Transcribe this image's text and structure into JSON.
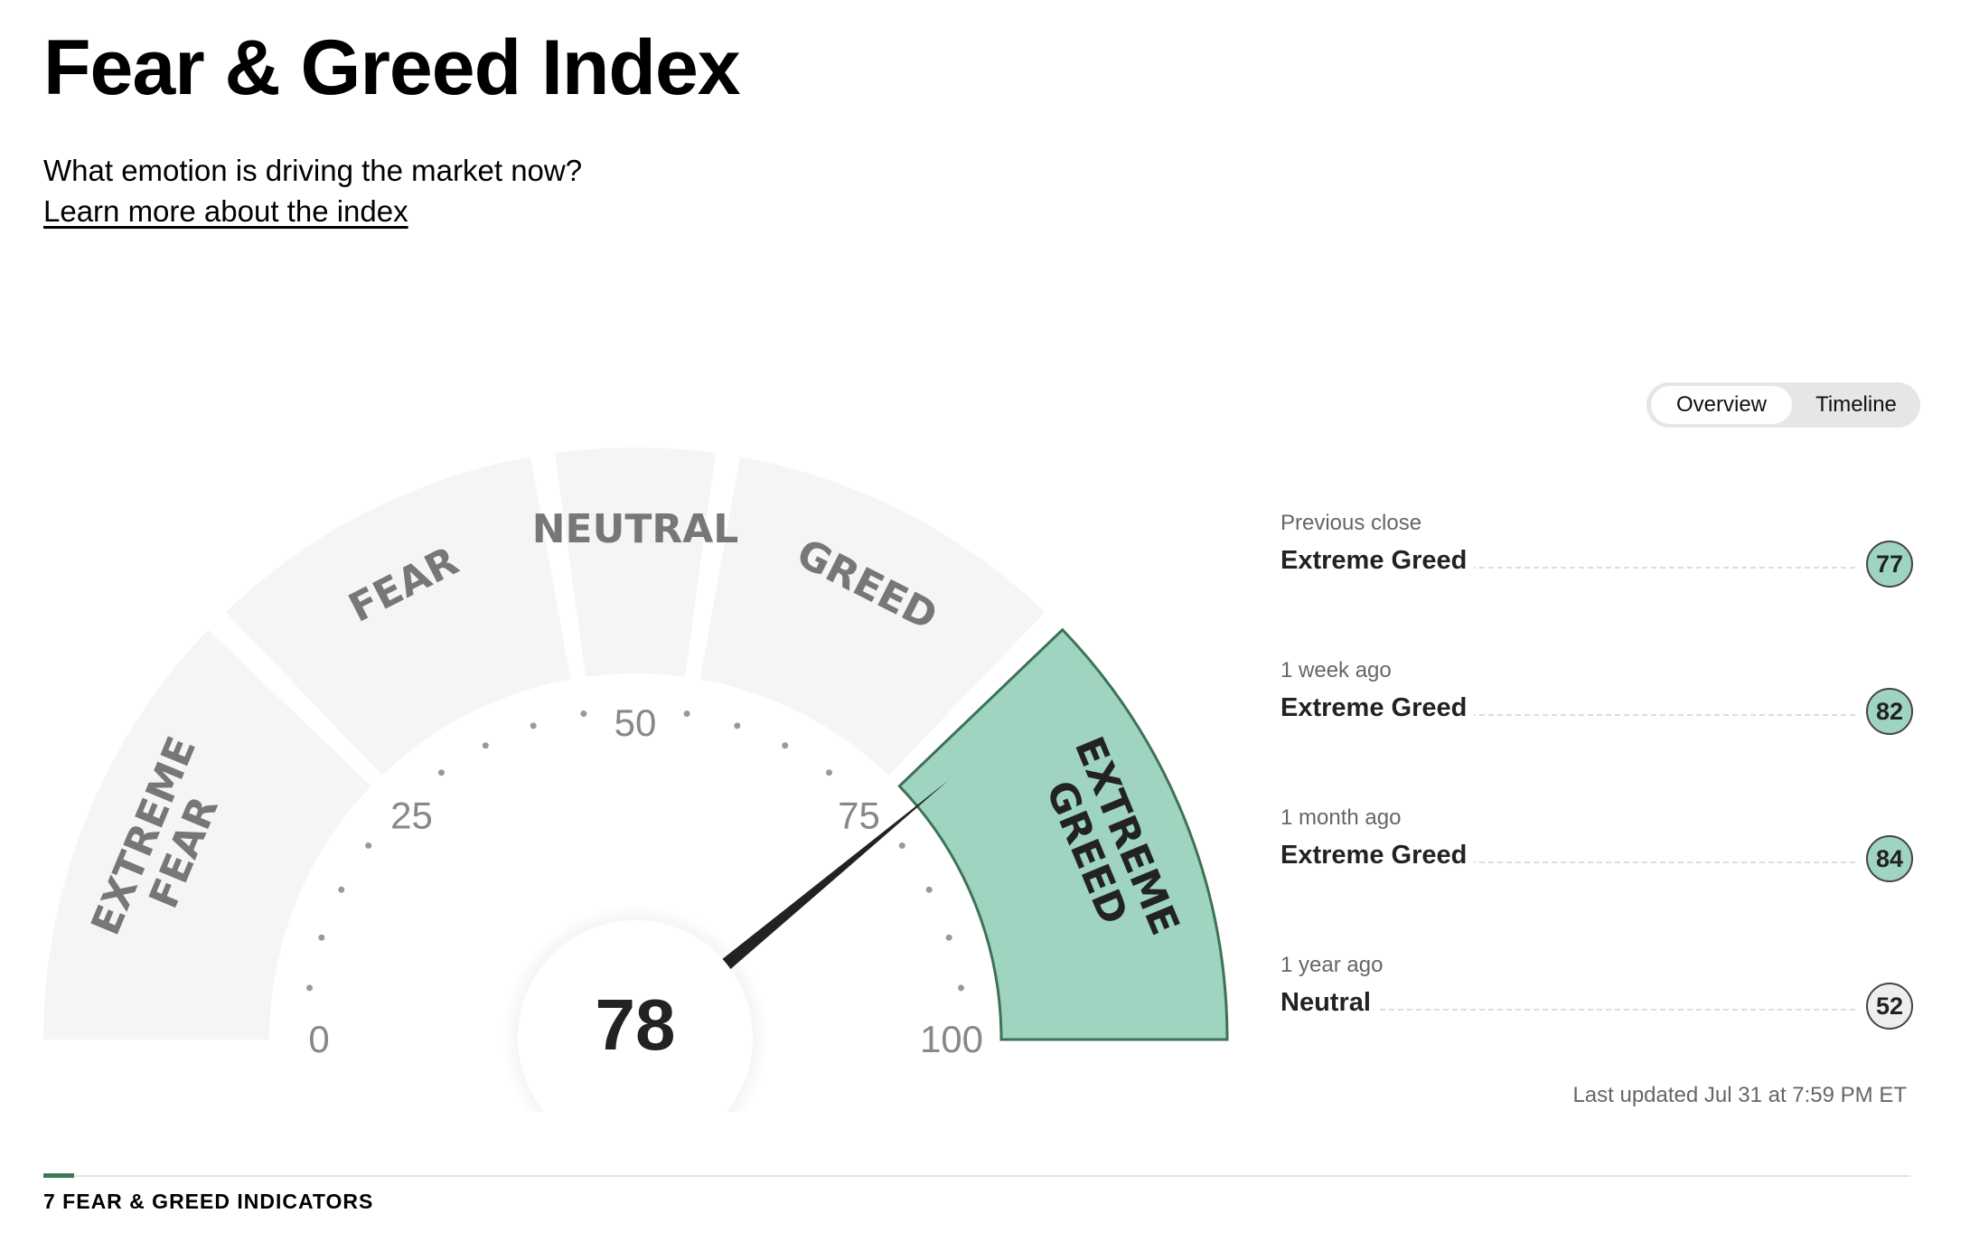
{
  "header": {
    "title": "Fear & Greed Index",
    "subtitle": "What emotion is driving the market now?",
    "learn_link": "Learn more about the index"
  },
  "view_toggle": {
    "overview": "Overview",
    "timeline": "Timeline",
    "selected": "Overview"
  },
  "gauge": {
    "value": 78,
    "segments": [
      {
        "lines": [
          "EXTREME",
          "FEAR"
        ],
        "range": [
          0,
          25
        ]
      },
      {
        "lines": [
          "FEAR"
        ],
        "range": [
          25,
          45
        ]
      },
      {
        "lines": [
          "NEUTRAL"
        ],
        "range": [
          45,
          55
        ]
      },
      {
        "lines": [
          "GREED"
        ],
        "range": [
          55,
          75
        ]
      },
      {
        "lines": [
          "EXTREME",
          "GREED"
        ],
        "range": [
          75,
          100
        ]
      }
    ],
    "active_segment": 4,
    "ticks": [
      "0",
      "25",
      "50",
      "75",
      "100"
    ],
    "colors": {
      "inactive": "#f5f5f5",
      "active": "#9fd4c1",
      "active_border": "#3d7255",
      "label": "#777777",
      "active_label": "#222222",
      "needle": "#222222"
    }
  },
  "history": [
    {
      "label": "Previous close",
      "rating": "Extreme Greed",
      "value": "77",
      "color": "#9fd4c1"
    },
    {
      "label": "1 week ago",
      "rating": "Extreme Greed",
      "value": "82",
      "color": "#9fd4c1"
    },
    {
      "label": "1 month ago",
      "rating": "Extreme Greed",
      "value": "84",
      "color": "#9fd4c1"
    },
    {
      "label": "1 year ago",
      "rating": "Neutral",
      "value": "52",
      "color": "#eeeeee"
    }
  ],
  "last_updated": "Last updated Jul 31 at 7:59 PM ET",
  "indicators_label": "7 FEAR & GREED INDICATORS"
}
